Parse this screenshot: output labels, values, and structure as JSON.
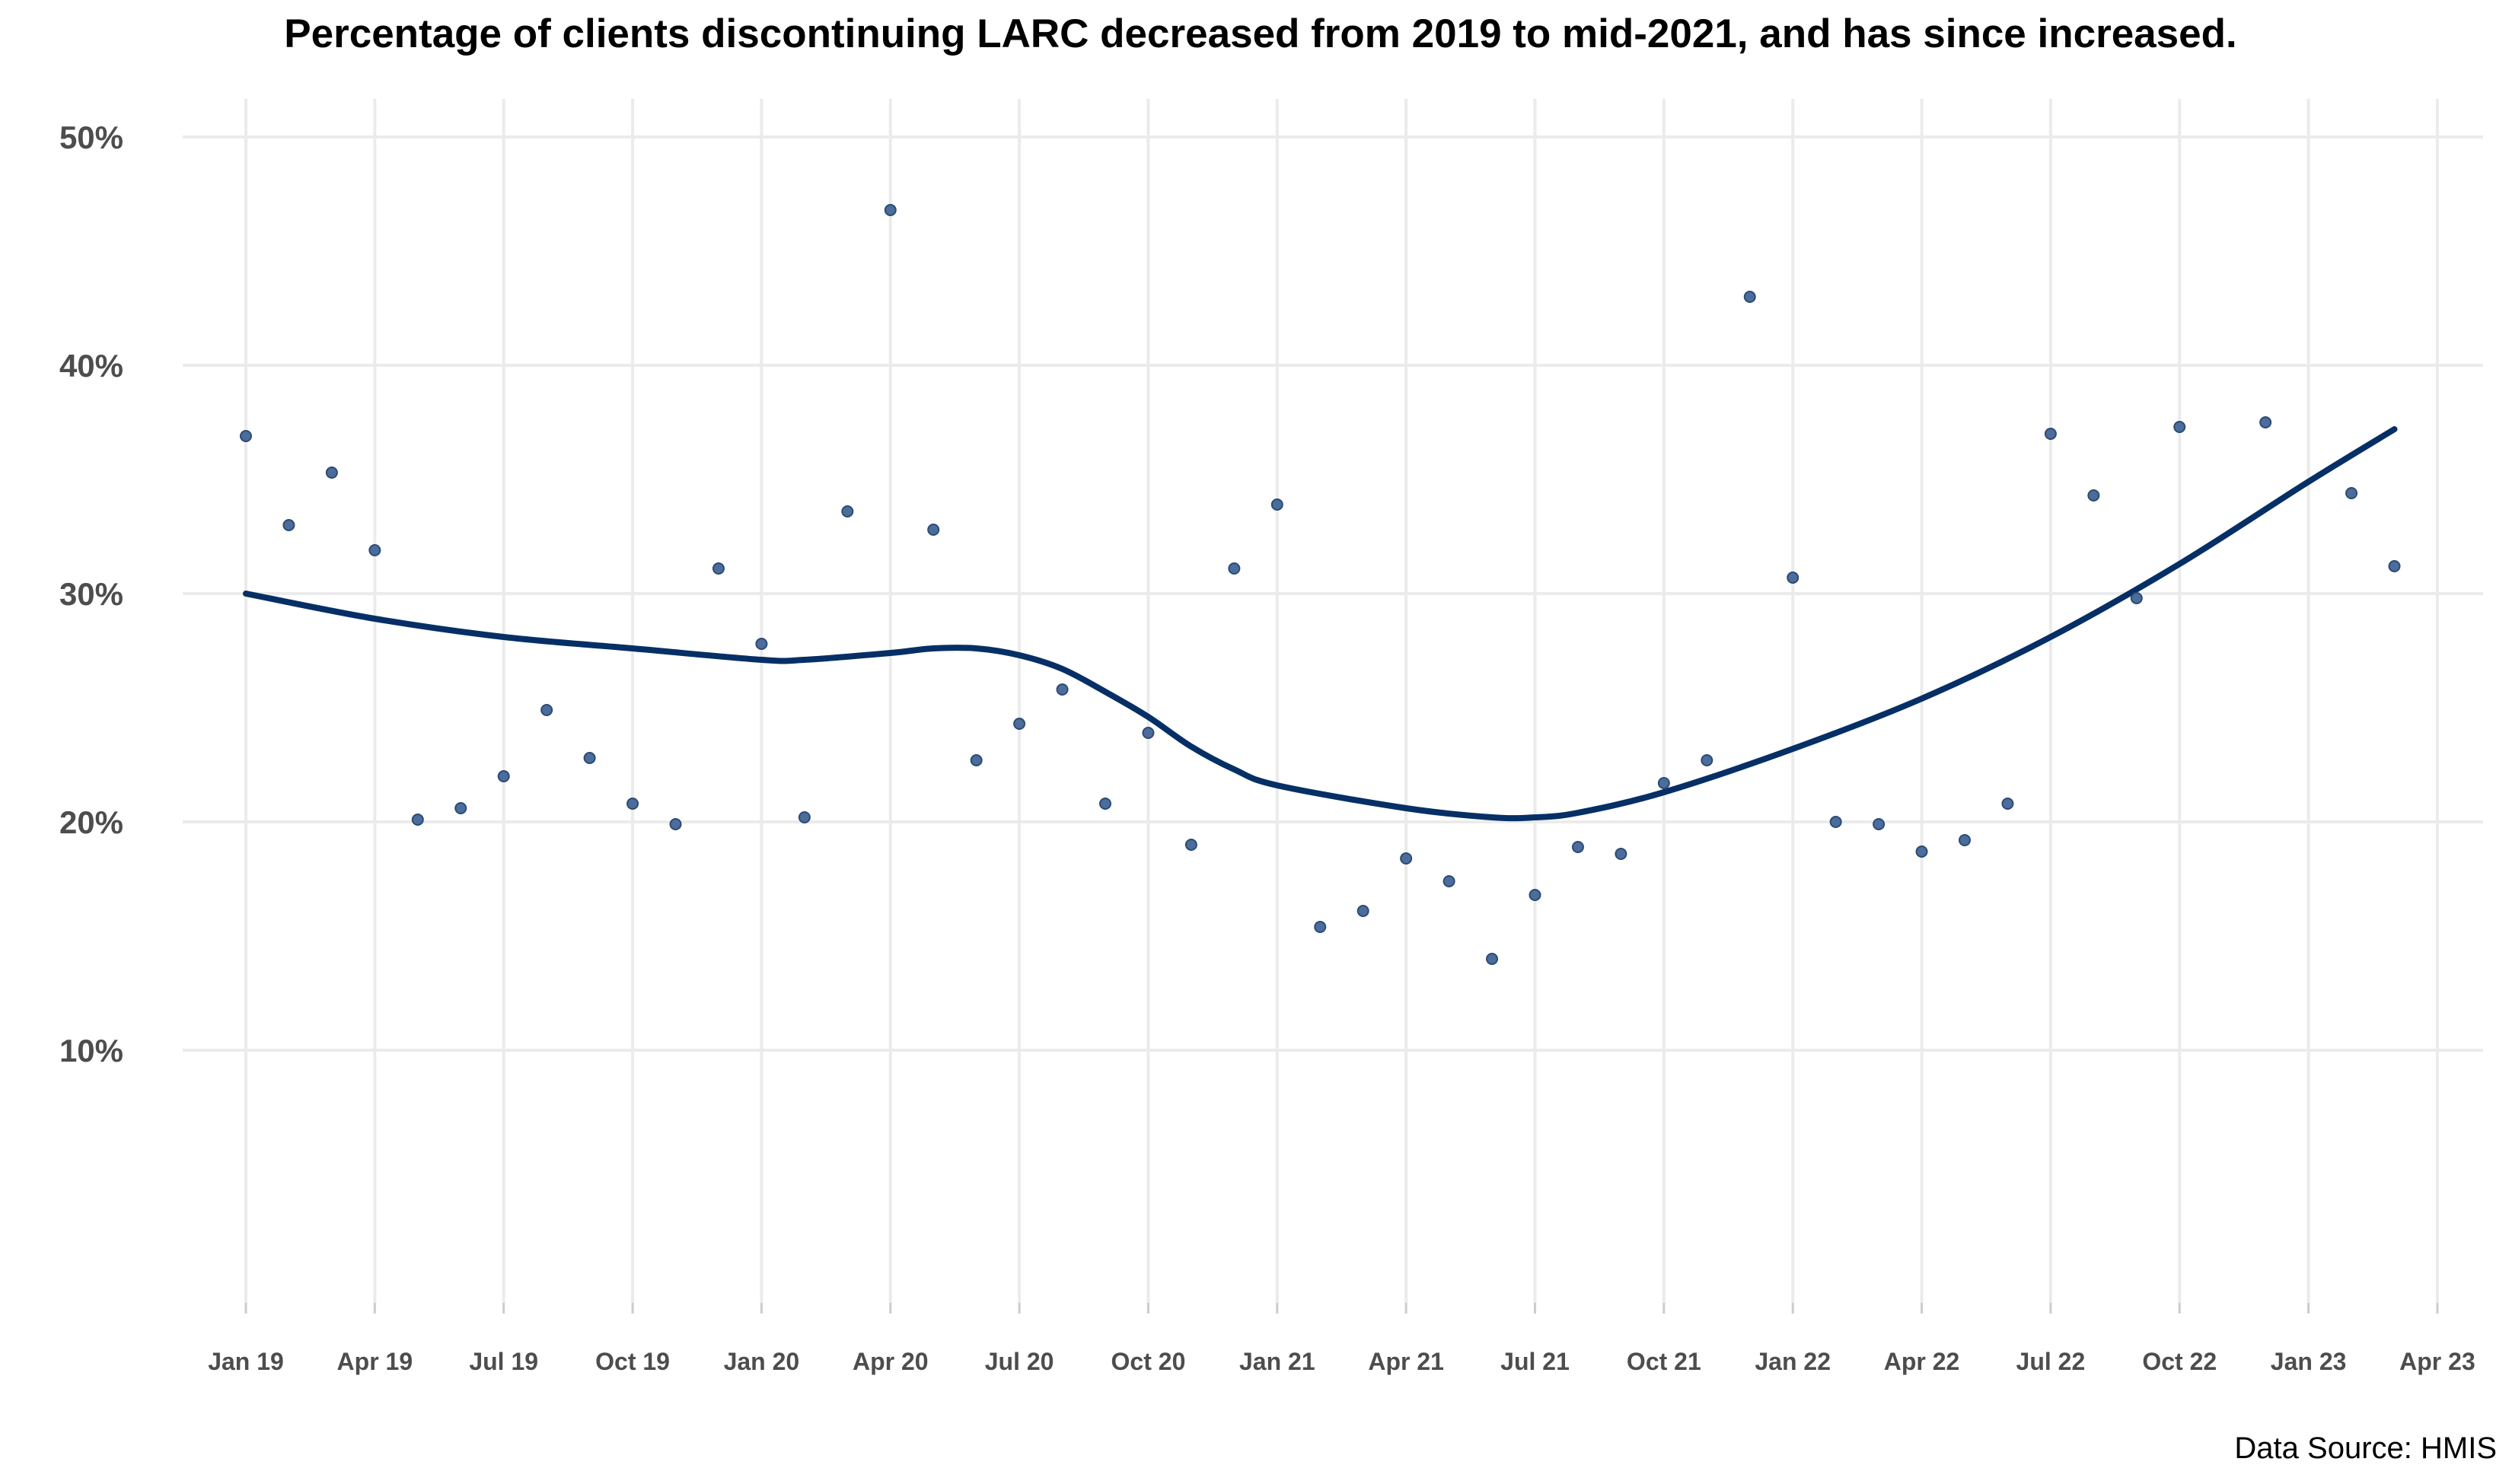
{
  "chart_data": {
    "type": "scatter",
    "title": "Percentage of clients discontinuing LARC decreased from 2019 to mid-2021, and has since increased.",
    "caption": "Data Source: HMIS",
    "xlabel": "",
    "ylabel": "",
    "x_ticks": [
      "Jan 19",
      "Apr 19",
      "Jul 19",
      "Oct 19",
      "Jan 20",
      "Apr 20",
      "Jul 20",
      "Oct 20",
      "Jan 21",
      "Apr 21",
      "Jul 21",
      "Oct 21",
      "Jan 22",
      "Apr 22",
      "Jul 22",
      "Oct 22",
      "Jan 23",
      "Apr 23"
    ],
    "y_ticks": [
      "10%",
      "20%",
      "30%",
      "40%",
      "50%"
    ],
    "ylim": [
      0,
      52
    ],
    "grid": true,
    "point_color": "#4a6d9c",
    "line_color": "#062f66",
    "series": [
      {
        "kind": "points",
        "x": [
          "2019-01",
          "2019-02",
          "2019-03",
          "2019-04",
          "2019-05",
          "2019-06",
          "2019-07",
          "2019-08",
          "2019-09",
          "2019-10",
          "2019-11",
          "2019-12",
          "2020-01",
          "2020-02",
          "2020-03",
          "2020-04",
          "2020-05",
          "2020-06",
          "2020-07",
          "2020-08",
          "2020-09",
          "2020-10",
          "2020-11",
          "2020-12",
          "2021-01",
          "2021-02",
          "2021-03",
          "2021-04",
          "2021-05",
          "2021-06",
          "2021-07",
          "2021-08",
          "2021-09",
          "2021-10",
          "2021-11",
          "2021-12",
          "2022-01",
          "2022-02",
          "2022-03",
          "2022-04",
          "2022-05",
          "2022-06",
          "2022-07",
          "2022-08",
          "2022-09",
          "2022-10",
          "2022-12",
          "2023-02",
          "2023-03"
        ],
        "values": [
          36.9,
          33.0,
          35.3,
          31.9,
          20.1,
          20.6,
          22.0,
          24.9,
          22.8,
          20.8,
          19.9,
          31.1,
          27.8,
          20.2,
          33.6,
          46.8,
          32.8,
          22.7,
          24.3,
          25.8,
          20.8,
          23.9,
          19.0,
          31.1,
          33.9,
          15.4,
          16.1,
          18.4,
          17.4,
          14.0,
          16.8,
          18.9,
          18.6,
          21.7,
          22.7,
          43.0,
          30.7,
          20.0,
          19.9,
          18.7,
          19.2,
          20.8,
          37.0,
          34.3,
          29.8,
          37.3,
          37.5,
          34.4,
          31.2
        ]
      },
      {
        "kind": "smooth",
        "x": [
          "2019-01",
          "2019-04",
          "2019-07",
          "2019-10",
          "2020-01",
          "2020-02",
          "2020-04",
          "2020-05",
          "2020-06",
          "2020-07",
          "2020-08",
          "2020-09",
          "2020-10",
          "2020-11",
          "2020-12",
          "2021-01",
          "2021-04",
          "2021-06",
          "2021-07",
          "2021-08",
          "2021-10",
          "2022-01",
          "2022-04",
          "2022-07",
          "2022-10",
          "2023-01",
          "2023-03"
        ],
        "values": [
          30.0,
          28.9,
          28.1,
          27.6,
          27.1,
          27.1,
          27.4,
          27.6,
          27.6,
          27.3,
          26.7,
          25.7,
          24.6,
          23.3,
          22.3,
          21.6,
          20.6,
          20.2,
          20.2,
          20.4,
          21.3,
          23.2,
          25.4,
          28.1,
          31.3,
          34.9,
          37.2
        ]
      }
    ]
  }
}
